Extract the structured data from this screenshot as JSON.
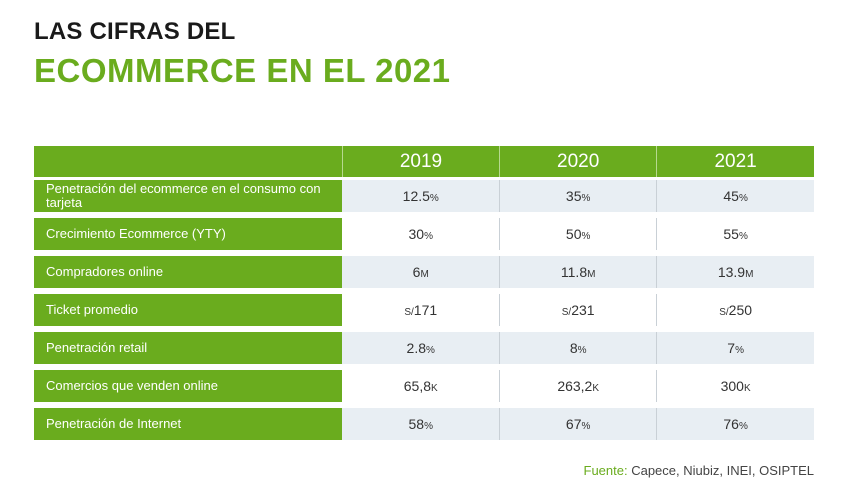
{
  "header": {
    "title_line1": "LAS CIFRAS DEL",
    "title_line2": "ECOMMERCE EN EL 2021"
  },
  "table": {
    "years": [
      "2019",
      "2020",
      "2021"
    ],
    "rows": [
      {
        "label": "Penetración del ecommerce en el consumo con tarjeta",
        "cells": [
          {
            "pre": "",
            "value": "12.5",
            "unit": "%"
          },
          {
            "pre": "",
            "value": "35",
            "unit": "%"
          },
          {
            "pre": "",
            "value": "45",
            "unit": "%"
          }
        ]
      },
      {
        "label": "Crecimiento Ecommerce (YTY)",
        "cells": [
          {
            "pre": "",
            "value": "30",
            "unit": "%"
          },
          {
            "pre": "",
            "value": "50",
            "unit": "%"
          },
          {
            "pre": "",
            "value": "55",
            "unit": "%"
          }
        ]
      },
      {
        "label": "Compradores online",
        "cells": [
          {
            "pre": "",
            "value": "6",
            "unit": "M"
          },
          {
            "pre": "",
            "value": "11.8",
            "unit": "M"
          },
          {
            "pre": "",
            "value": "13.9",
            "unit": "M"
          }
        ]
      },
      {
        "label": "Ticket promedio",
        "cells": [
          {
            "pre": "S/",
            "value": "171",
            "unit": ""
          },
          {
            "pre": "S/",
            "value": "231",
            "unit": ""
          },
          {
            "pre": "S/",
            "value": "250",
            "unit": ""
          }
        ]
      },
      {
        "label": "Penetración retail",
        "cells": [
          {
            "pre": "",
            "value": "2.8",
            "unit": "%"
          },
          {
            "pre": "",
            "value": "8",
            "unit": "%"
          },
          {
            "pre": "",
            "value": "7",
            "unit": "%"
          }
        ]
      },
      {
        "label": "Comercios que venden online",
        "cells": [
          {
            "pre": "",
            "value": "65,8",
            "unit": "K"
          },
          {
            "pre": "",
            "value": "263,2",
            "unit": "K"
          },
          {
            "pre": "",
            "value": "300",
            "unit": "K"
          }
        ]
      },
      {
        "label": "Penetración de Internet",
        "cells": [
          {
            "pre": "",
            "value": "58",
            "unit": "%"
          },
          {
            "pre": "",
            "value": "67",
            "unit": "%"
          },
          {
            "pre": "",
            "value": "76",
            "unit": "%"
          }
        ]
      }
    ]
  },
  "footer": {
    "source_label": "Fuente:",
    "source_text": " Capece, Niubiz, INEI, OSIPTEL"
  },
  "colors": {
    "accent": "#6aac1e",
    "row_alt": "#e8eef3"
  }
}
